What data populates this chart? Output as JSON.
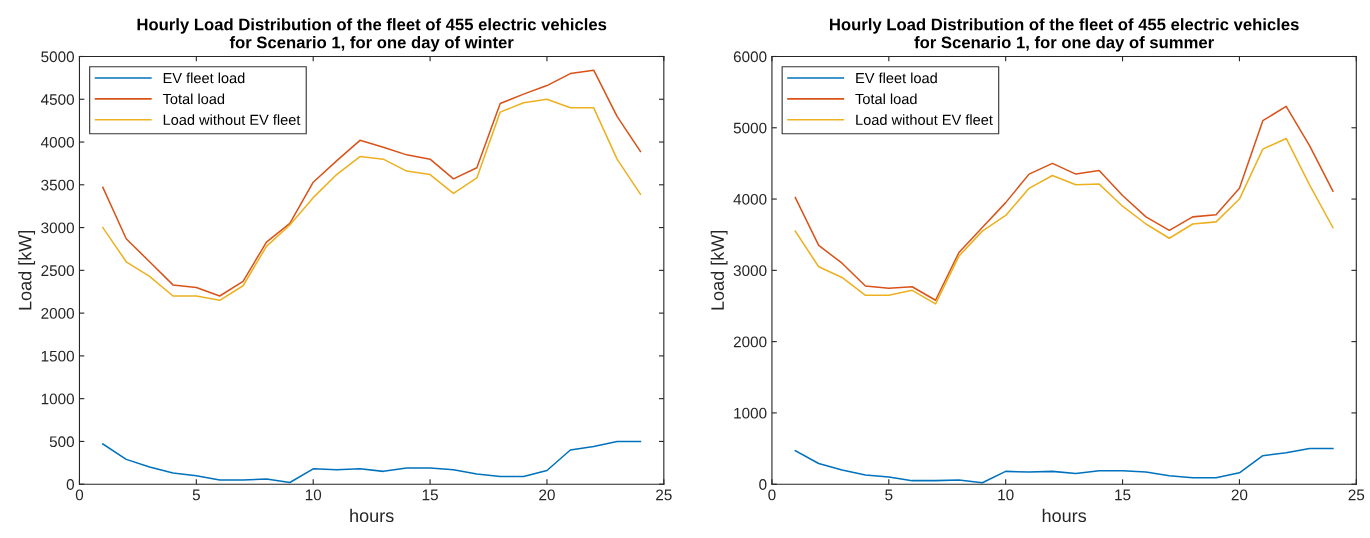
{
  "chart_data": [
    {
      "type": "line",
      "title": "Hourly Load Distribution of the fleet of 455 electric vehicles\nfor Scenario 1, for one day of winter",
      "xlabel": "hours",
      "ylabel": "Load [kW]",
      "x": [
        1,
        2,
        3,
        4,
        5,
        6,
        7,
        8,
        9,
        10,
        11,
        12,
        13,
        14,
        15,
        16,
        17,
        18,
        19,
        20,
        21,
        22,
        23,
        24
      ],
      "xlim": [
        0,
        25
      ],
      "xticks": [
        0,
        5,
        10,
        15,
        20,
        25
      ],
      "ylim": [
        0,
        5000
      ],
      "yticks": [
        0,
        500,
        1000,
        1500,
        2000,
        2500,
        3000,
        3500,
        4000,
        4500,
        5000
      ],
      "legend": "top left",
      "grid": false,
      "series": [
        {
          "name": "EV fleet load",
          "color": "#0072bd",
          "values": [
            470,
            290,
            200,
            130,
            100,
            50,
            50,
            60,
            20,
            180,
            170,
            180,
            150,
            190,
            190,
            170,
            120,
            90,
            90,
            160,
            400,
            440,
            500,
            500
          ]
        },
        {
          "name": "Total load",
          "color": "#d95319",
          "values": [
            3470,
            2870,
            2600,
            2330,
            2300,
            2200,
            2370,
            2830,
            3050,
            3530,
            3780,
            4020,
            3940,
            3850,
            3800,
            3570,
            3700,
            4450,
            4560,
            4660,
            4800,
            4840,
            4300,
            3890
          ]
        },
        {
          "name": "Load without EV fleet",
          "color": "#edb120",
          "values": [
            3000,
            2600,
            2430,
            2200,
            2200,
            2150,
            2320,
            2780,
            3030,
            3350,
            3620,
            3830,
            3800,
            3660,
            3620,
            3400,
            3580,
            4350,
            4460,
            4500,
            4400,
            4400,
            3800,
            3390
          ]
        }
      ]
    },
    {
      "type": "line",
      "title": "Hourly Load Distribution of the fleet of 455 electric vehicles\nfor Scenario 1, for one day of summer",
      "xlabel": "hours",
      "ylabel": "Load [kW]",
      "x": [
        1,
        2,
        3,
        4,
        5,
        6,
        7,
        8,
        9,
        10,
        11,
        12,
        13,
        14,
        15,
        16,
        17,
        18,
        19,
        20,
        21,
        22,
        23,
        24
      ],
      "xlim": [
        0,
        25
      ],
      "xticks": [
        0,
        5,
        10,
        15,
        20,
        25
      ],
      "ylim": [
        0,
        6000
      ],
      "yticks": [
        0,
        1000,
        2000,
        3000,
        4000,
        5000,
        6000
      ],
      "legend": "top left",
      "grid": false,
      "series": [
        {
          "name": "EV fleet load",
          "color": "#0072bd",
          "values": [
            470,
            290,
            200,
            130,
            100,
            50,
            50,
            60,
            20,
            180,
            170,
            180,
            150,
            190,
            190,
            170,
            120,
            90,
            90,
            160,
            400,
            440,
            500,
            500
          ]
        },
        {
          "name": "Total load",
          "color": "#d95319",
          "values": [
            4020,
            3350,
            3100,
            2780,
            2750,
            2770,
            2580,
            3250,
            3600,
            3950,
            4350,
            4500,
            4350,
            4400,
            4050,
            3750,
            3560,
            3750,
            3780,
            4150,
            5100,
            5300,
            4750,
            4110
          ]
        },
        {
          "name": "Load without EV fleet",
          "color": "#edb120",
          "values": [
            3550,
            3050,
            2900,
            2650,
            2650,
            2720,
            2530,
            3200,
            3550,
            3770,
            4150,
            4330,
            4200,
            4210,
            3900,
            3650,
            3450,
            3650,
            3680,
            4000,
            4700,
            4850,
            4200,
            3600
          ]
        }
      ]
    }
  ]
}
